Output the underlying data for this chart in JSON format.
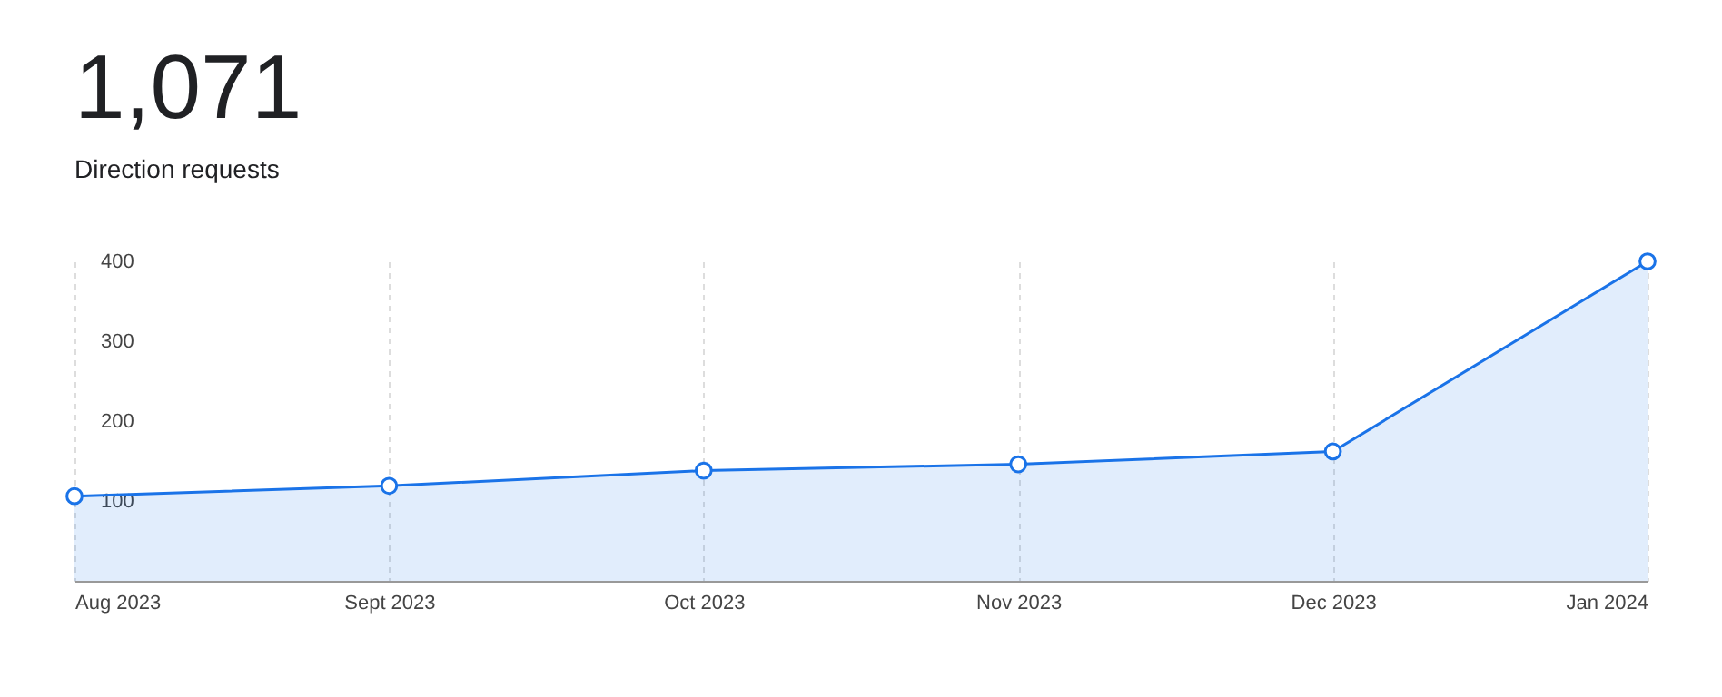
{
  "chart_data": {
    "type": "area",
    "title": "1,071",
    "subtitle": "Direction requests",
    "categories": [
      "Aug 2023",
      "Sept 2023",
      "Oct 2023",
      "Nov 2023",
      "Dec 2023",
      "Jan 2024"
    ],
    "series": [
      {
        "color": "#1a73e8",
        "values": [
          106,
          119,
          138,
          146,
          162,
          400
        ]
      }
    ],
    "ylim": [
      0,
      400
    ],
    "yticks": [
      100,
      200,
      300,
      400
    ],
    "grid": "x",
    "marker": "circle"
  }
}
